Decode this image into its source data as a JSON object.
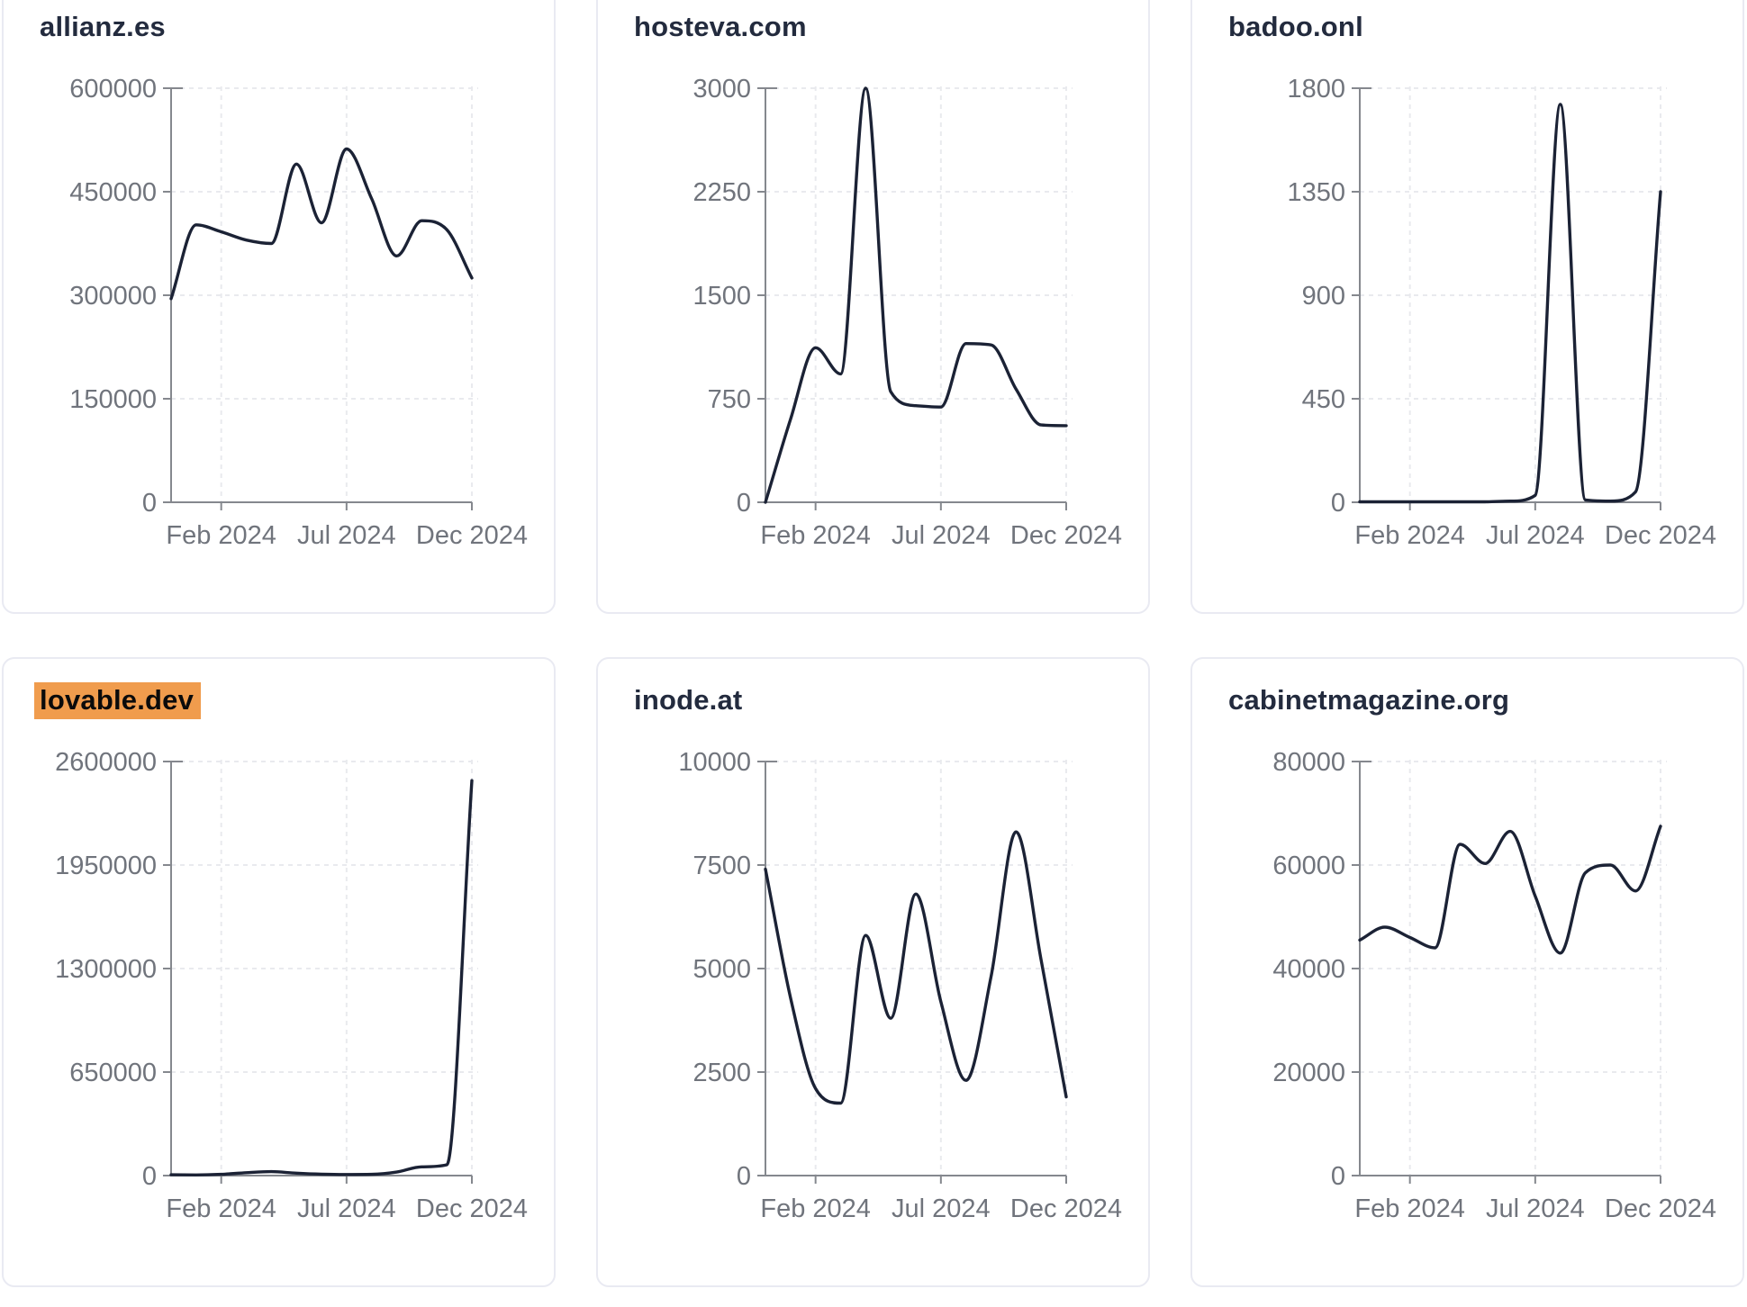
{
  "page": {
    "kind": "domain-traffic-dashboard",
    "highlight_color": "#f09c4d",
    "line_color": "#1b2235",
    "axis_color": "#85888e",
    "grid_color": "#e9eaee",
    "label_color": "#70747c",
    "title_color": "#232b3e"
  },
  "chart_data": [
    {
      "type": "line",
      "title": "allianz.es",
      "title_highlighted": false,
      "x": [
        "Dec 2023",
        "Jan 2024",
        "Feb 2024",
        "Mar 2024",
        "Apr 2024",
        "May 2024",
        "Jun 2024",
        "Jul 2024",
        "Aug 2024",
        "Sep 2024",
        "Oct 2024",
        "Nov 2024",
        "Dec 2024"
      ],
      "values": [
        295000,
        402000,
        392000,
        380000,
        375000,
        490000,
        405000,
        512000,
        440000,
        357000,
        408000,
        395000,
        325000
      ],
      "yticks": [
        0,
        150000,
        300000,
        450000,
        600000
      ],
      "ylim": [
        0,
        600000
      ],
      "xticks": [
        {
          "index": 2,
          "label": "Feb 2024"
        },
        {
          "index": 7,
          "label": "Jul 2024"
        },
        {
          "index": 12,
          "label": "Dec 2024"
        }
      ],
      "grid": "dashed",
      "legend": "none"
    },
    {
      "type": "line",
      "title": "hosteva.com",
      "title_highlighted": false,
      "x": [
        "Dec 2023",
        "Jan 2024",
        "Feb 2024",
        "Mar 2024",
        "Apr 2024",
        "May 2024",
        "Jun 2024",
        "Jul 2024",
        "Aug 2024",
        "Sep 2024",
        "Oct 2024",
        "Nov 2024",
        "Dec 2024"
      ],
      "values": [
        0,
        600,
        1120,
        930,
        3000,
        800,
        700,
        690,
        1150,
        1140,
        820,
        560,
        555
      ],
      "yticks": [
        0,
        750,
        1500,
        2250,
        3000
      ],
      "ylim": [
        0,
        3000
      ],
      "xticks": [
        {
          "index": 2,
          "label": "Feb 2024"
        },
        {
          "index": 7,
          "label": "Jul 2024"
        },
        {
          "index": 12,
          "label": "Dec 2024"
        }
      ],
      "grid": "dashed",
      "legend": "none"
    },
    {
      "type": "line",
      "title": "badoo.onl",
      "title_highlighted": false,
      "x": [
        "Dec 2023",
        "Jan 2024",
        "Feb 2024",
        "Mar 2024",
        "Apr 2024",
        "May 2024",
        "Jun 2024",
        "Jul 2024",
        "Aug 2024",
        "Sep 2024",
        "Oct 2024",
        "Nov 2024",
        "Dec 2024"
      ],
      "values": [
        2,
        2,
        2,
        2,
        2,
        2,
        5,
        30,
        1730,
        10,
        5,
        45,
        1350
      ],
      "yticks": [
        0,
        450,
        900,
        1350,
        1800
      ],
      "ylim": [
        0,
        1800
      ],
      "xticks": [
        {
          "index": 2,
          "label": "Feb 2024"
        },
        {
          "index": 7,
          "label": "Jul 2024"
        },
        {
          "index": 12,
          "label": "Dec 2024"
        }
      ],
      "grid": "dashed",
      "legend": "none"
    },
    {
      "type": "line",
      "title": "lovable.dev",
      "title_highlighted": true,
      "x": [
        "Dec 2023",
        "Jan 2024",
        "Feb 2024",
        "Mar 2024",
        "Apr 2024",
        "May 2024",
        "Jun 2024",
        "Jul 2024",
        "Aug 2024",
        "Sep 2024",
        "Oct 2024",
        "Nov 2024",
        "Dec 2024"
      ],
      "values": [
        5000,
        4000,
        8000,
        18000,
        25000,
        15000,
        9000,
        7000,
        8000,
        22000,
        55000,
        68000,
        2480000
      ],
      "yticks": [
        0,
        650000,
        1300000,
        1950000,
        2600000
      ],
      "ylim": [
        0,
        2600000
      ],
      "xticks": [
        {
          "index": 2,
          "label": "Feb 2024"
        },
        {
          "index": 7,
          "label": "Jul 2024"
        },
        {
          "index": 12,
          "label": "Dec 2024"
        }
      ],
      "grid": "dashed",
      "legend": "none"
    },
    {
      "type": "line",
      "title": "inode.at",
      "title_highlighted": false,
      "x": [
        "Dec 2023",
        "Jan 2024",
        "Feb 2024",
        "Mar 2024",
        "Apr 2024",
        "May 2024",
        "Jun 2024",
        "Jul 2024",
        "Aug 2024",
        "Sep 2024",
        "Oct 2024",
        "Nov 2024",
        "Dec 2024"
      ],
      "values": [
        7400,
        4300,
        2100,
        1750,
        5800,
        3800,
        6800,
        4200,
        2300,
        4800,
        8300,
        5200,
        1900
      ],
      "yticks": [
        0,
        2500,
        5000,
        7500,
        10000
      ],
      "ylim": [
        0,
        10000
      ],
      "xticks": [
        {
          "index": 2,
          "label": "Feb 2024"
        },
        {
          "index": 7,
          "label": "Jul 2024"
        },
        {
          "index": 12,
          "label": "Dec 2024"
        }
      ],
      "grid": "dashed",
      "legend": "none"
    },
    {
      "type": "line",
      "title": "cabinetmagazine.org",
      "title_highlighted": false,
      "x": [
        "Dec 2023",
        "Jan 2024",
        "Feb 2024",
        "Mar 2024",
        "Apr 2024",
        "May 2024",
        "Jun 2024",
        "Jul 2024",
        "Aug 2024",
        "Sep 2024",
        "Oct 2024",
        "Nov 2024",
        "Dec 2024"
      ],
      "values": [
        45500,
        48000,
        46000,
        44000,
        64000,
        60300,
        66500,
        54000,
        43000,
        58500,
        60000,
        55000,
        67500
      ],
      "yticks": [
        0,
        20000,
        40000,
        60000,
        80000
      ],
      "ylim": [
        0,
        80000
      ],
      "xticks": [
        {
          "index": 2,
          "label": "Feb 2024"
        },
        {
          "index": 7,
          "label": "Jul 2024"
        },
        {
          "index": 12,
          "label": "Dec 2024"
        }
      ],
      "grid": "dashed",
      "legend": "none"
    }
  ]
}
